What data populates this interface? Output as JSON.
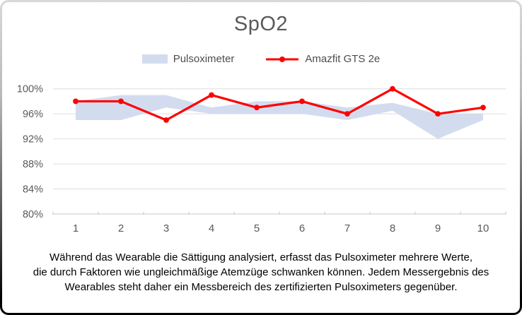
{
  "card": {
    "title": "SpO2",
    "caption_lines": [
      "Während das Wearable die Sättigung analysiert, erfasst das Pulsoximeter mehrere Werte,",
      "die durch Faktoren wie ungleichmäßige Atemzüge schwanken können. Jedem Messergebnis des",
      "Wearables steht daher ein Messbereich des zertifizierten Pulsoximeters gegenüber."
    ]
  },
  "legend": {
    "items": [
      {
        "label": "Pulsoximeter",
        "swatch": "band-swatch",
        "color": "#d3dcef"
      },
      {
        "label": "Amazfit GTS 2e",
        "swatch": "line-marker-swatch",
        "color": "#ff0000"
      }
    ]
  },
  "chart_data": {
    "type": "line",
    "title": "SpO2",
    "categories": [
      1,
      2,
      3,
      4,
      5,
      6,
      7,
      8,
      9,
      10
    ],
    "series": [
      {
        "name": "Pulsoximeter",
        "type": "range_area",
        "color": "#d3dcef",
        "min": [
          95,
          95,
          97,
          96,
          96,
          96,
          95,
          96.5,
          92,
          95
        ],
        "max": [
          98,
          99,
          99,
          97,
          98,
          98,
          97,
          97.75,
          96,
          96
        ]
      },
      {
        "name": "Amazfit GTS 2e",
        "type": "line_with_markers",
        "color": "#ff0000",
        "values": [
          98,
          98,
          95,
          99,
          97,
          98,
          96,
          100,
          96,
          97
        ]
      }
    ],
    "xlabel": "",
    "ylabel": "",
    "ylim": [
      80,
      100
    ],
    "yticks": [
      100,
      96,
      92,
      88,
      84,
      80
    ],
    "ytick_format": "percent",
    "xticks": [
      1,
      2,
      3,
      4,
      5,
      6,
      7,
      8,
      9,
      10
    ],
    "grid": true,
    "grid_color": "#dedede",
    "axis_color": "#c9c9c9",
    "tick_label_color": "#595959",
    "legend_position": "top"
  }
}
